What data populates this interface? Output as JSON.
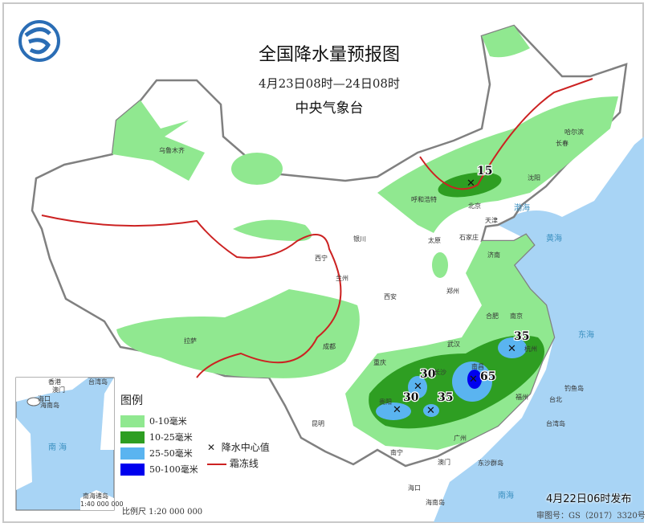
{
  "header": {
    "title": "全国降水量预报图",
    "period": "4月23日08时—24日08时",
    "agency": "中央气象台"
  },
  "legend": {
    "title": "图例",
    "items": [
      {
        "label": "0-10毫米",
        "color": "#90e890"
      },
      {
        "label": "10-25毫米",
        "color": "#2e9e22"
      },
      {
        "label": "25-50毫米",
        "color": "#5ab4f0"
      },
      {
        "label": "50-100毫米",
        "color": "#0000ee"
      }
    ],
    "center_label": "降水中心值",
    "frost_label": "霜冻线",
    "scale": "比例尺  1:20 000 000"
  },
  "inset": {
    "title": "南海诸岛",
    "scale": "1:40 000 000",
    "sea": "南  海",
    "labels": [
      "香港",
      "台湾岛",
      "澳门",
      "海口",
      "海南岛"
    ]
  },
  "footer": {
    "issued": "4月22日06时发布",
    "approval": "审图号：GS（2017）3320号"
  },
  "precip_centers": [
    {
      "value": "15"
    },
    {
      "value": "30"
    },
    {
      "value": "30"
    },
    {
      "value": "35"
    },
    {
      "value": "65"
    },
    {
      "value": "35"
    }
  ],
  "cities": [
    "乌鲁木齐",
    "哈尔滨",
    "长春",
    "沈阳",
    "呼和浩特",
    "北京",
    "天津",
    "石家庄",
    "太原",
    "银川",
    "西宁",
    "兰州",
    "西安",
    "郑州",
    "济南",
    "合肥",
    "南京",
    "武汉",
    "长沙",
    "南昌",
    "杭州",
    "福州",
    "台北",
    "成都",
    "重庆",
    "贵阳",
    "昆明",
    "南宁",
    "广州",
    "澳门",
    "海口",
    "拉萨"
  ],
  "seas": [
    "渤海",
    "黄海",
    "东海",
    "南海",
    "钓鱼岛",
    "台湾岛",
    "东沙群岛",
    "海南岛"
  ],
  "colors": {
    "sea": "#a8d4f5",
    "frost_line": "#cc2222",
    "border": "#808080"
  }
}
